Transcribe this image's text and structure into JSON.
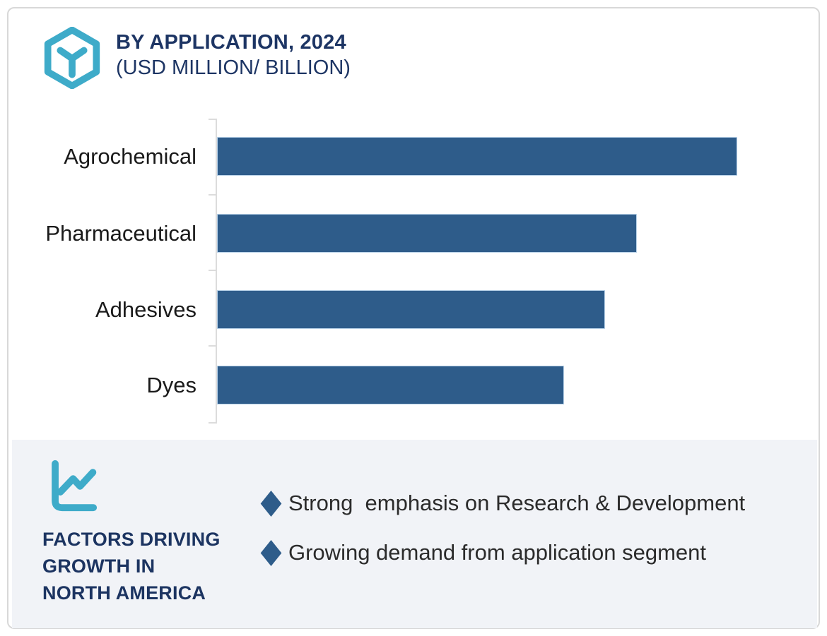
{
  "header": {
    "title": "BY APPLICATION, 2024",
    "subtitle": "(USD MILLION/ BILLION)"
  },
  "chart_data": {
    "type": "bar",
    "orientation": "horizontal",
    "title": "BY APPLICATION, 2024",
    "subtitle": "(USD MILLION/ BILLION)",
    "categories": [
      "Agrochemical",
      "Pharmaceutical",
      "Adhesives",
      "Dyes"
    ],
    "values": [
      100,
      80.7,
      74.6,
      66.7
    ],
    "values_note": "relative bar lengths in % of longest bar; chart shows no numeric axis labels",
    "xlabel": "",
    "ylabel": "",
    "grid": false,
    "legend_position": "none",
    "bar_color": "#2e5c8a"
  },
  "factors_panel": {
    "heading_lines": [
      "FACTORS DRIVING",
      "GROWTH IN",
      "NORTH AMERICA"
    ],
    "bullets": [
      "Strong  emphasis on Research & Development",
      "Growing demand from application segment"
    ]
  },
  "icons": {
    "logo": "hexagon-y-logo-icon",
    "panel": "line-chart-icon",
    "bullet": "diamond-bullet-icon"
  },
  "colors": {
    "bar_blue": "#2e5c8a",
    "navy_text": "#1d3564",
    "teal_accent": "#3eabc9",
    "panel_background": "#f1f3f7",
    "axis_gray": "#dcdcdc",
    "body_text": "#2b2b2b",
    "card_border": "#d8d8d8"
  }
}
